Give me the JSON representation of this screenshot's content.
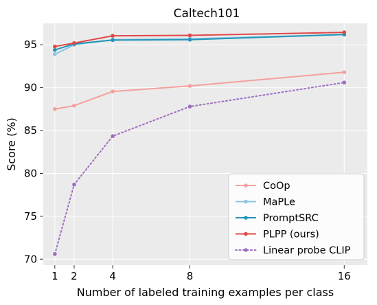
{
  "chart_data": {
    "type": "line",
    "title": "Caltech101",
    "xlabel": "Number of labeled training examples per class",
    "ylabel": "Score (%)",
    "x": [
      1,
      2,
      4,
      8,
      16
    ],
    "x_ticks": [
      "1",
      "2",
      "4",
      "8",
      "16"
    ],
    "xlim": [
      0.4,
      17.2
    ],
    "y_ticks": [
      "70",
      "75",
      "80",
      "85",
      "90",
      "95"
    ],
    "ylim": [
      69.3,
      97.5
    ],
    "grid": true,
    "legend_position": "lower-right",
    "series": [
      {
        "name": "CoOp",
        "values": [
          87.5,
          87.9,
          89.55,
          90.2,
          91.8
        ],
        "color": "#f4a09c",
        "style": "solid"
      },
      {
        "name": "MaPLe",
        "values": [
          93.9,
          95.0,
          95.6,
          95.7,
          96.2
        ],
        "color": "#8ec3e6",
        "style": "solid"
      },
      {
        "name": "PromptSRC",
        "values": [
          94.4,
          95.1,
          95.55,
          95.6,
          96.2
        ],
        "color": "#2196b6",
        "style": "solid"
      },
      {
        "name": "PLPP (ours)",
        "values": [
          94.8,
          95.2,
          96.05,
          96.1,
          96.45
        ],
        "color": "#e04848",
        "style": "solid"
      },
      {
        "name": "Linear probe CLIP",
        "values": [
          70.6,
          78.7,
          84.35,
          87.8,
          90.6
        ],
        "color": "#9e6cc4",
        "style": "dotted"
      }
    ]
  }
}
